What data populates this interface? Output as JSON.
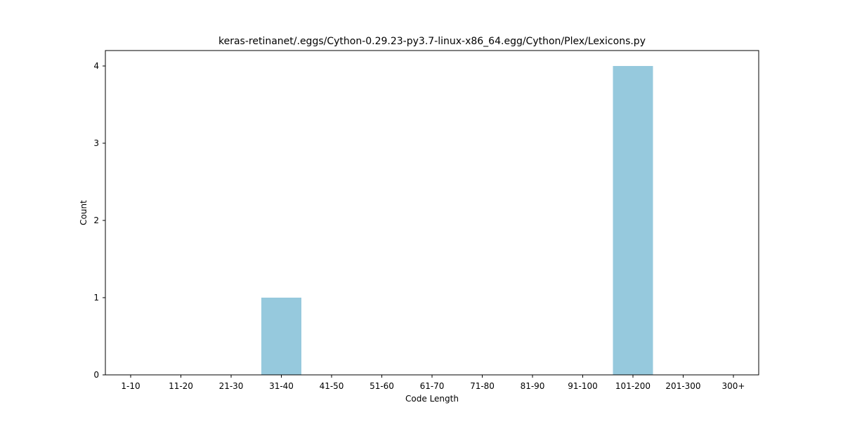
{
  "chart_data": {
    "type": "bar",
    "title": "keras-retinanet/.eggs/Cython-0.29.23-py3.7-linux-x86_64.egg/Cython/Plex/Lexicons.py",
    "xlabel": "Code Length",
    "ylabel": "Count",
    "categories": [
      "1-10",
      "11-20",
      "21-30",
      "31-40",
      "41-50",
      "51-60",
      "61-70",
      "71-80",
      "81-90",
      "91-100",
      "101-200",
      "201-300",
      "300+"
    ],
    "values": [
      0,
      0,
      0,
      1,
      0,
      0,
      0,
      0,
      0,
      0,
      4,
      0,
      0
    ],
    "ylim": [
      0,
      4.2
    ],
    "yticks": [
      0,
      1,
      2,
      3,
      4
    ],
    "grid": false,
    "legend": "none",
    "bar_color": "#96c9dd",
    "axis_color": "#000000"
  }
}
